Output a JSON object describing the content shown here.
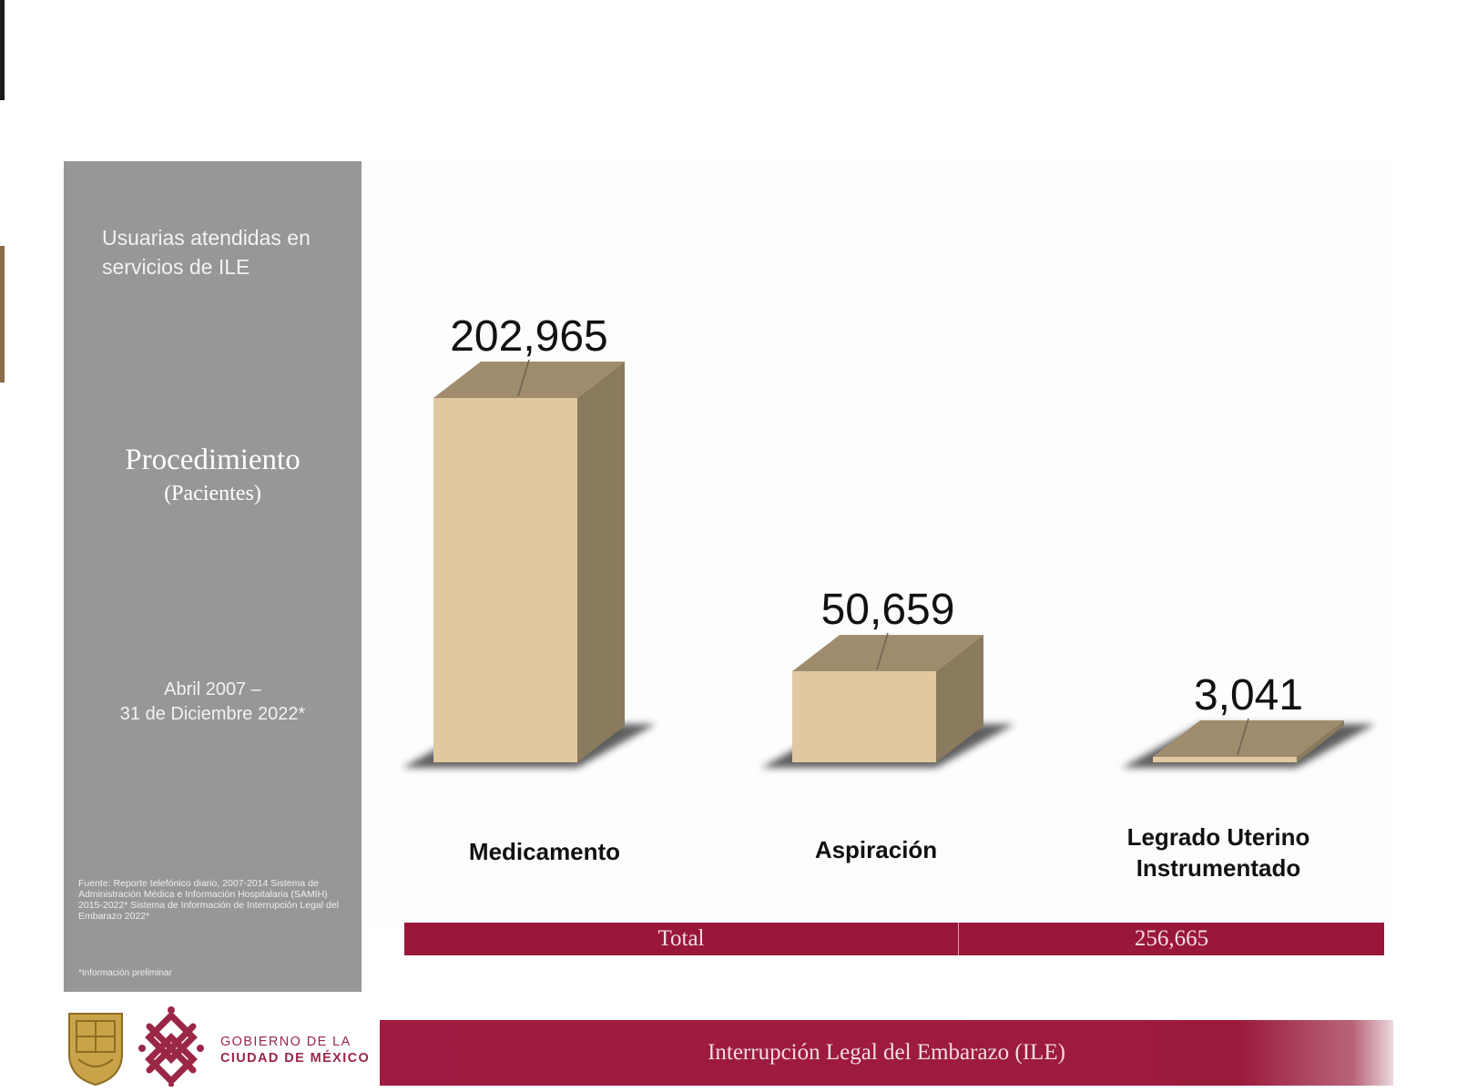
{
  "side_panel": {
    "subtitle": "Usuarias atendidas en servicios de ILE",
    "title": "Procedimiento",
    "unit": "(Pacientes)",
    "period_line1": "Abril 2007 –",
    "period_line2": "31 de Diciembre 2022*",
    "source": "Fuente: Reporte telefónico diario, 2007-2014 Sistema de Administración Médica e Información Hospitalaria (SAMIH) 2015-2022* Sistema de Información de Interrupción Legal del Embarazo 2022*",
    "note": "*Información preliminar"
  },
  "chart_data": {
    "type": "bar",
    "categories": [
      "Medicamento",
      "Aspiración",
      "Legrado Uterino Instrumentado"
    ],
    "values": [
      202965,
      50659,
      3041
    ],
    "value_labels": [
      "202,965",
      "50,659",
      "3,041"
    ],
    "title": "Procedimiento",
    "subtitle": "(Pacientes)",
    "xlabel": "",
    "ylabel": "",
    "style": "3d-columns",
    "grid": false,
    "colors": {
      "front": "#e0c9a1",
      "top": "#9f8c6c",
      "side": "#8a7a5e",
      "shadow": "#2a2a2a"
    }
  },
  "total": {
    "label": "Total",
    "value": "256,665"
  },
  "footer": {
    "gov_line1": "GOBIERNO DE LA",
    "gov_line2": "CIUDAD DE MÉXICO",
    "banner": "Interrupción Legal del Embarazo (ILE)",
    "brand_color": "#98173a"
  }
}
